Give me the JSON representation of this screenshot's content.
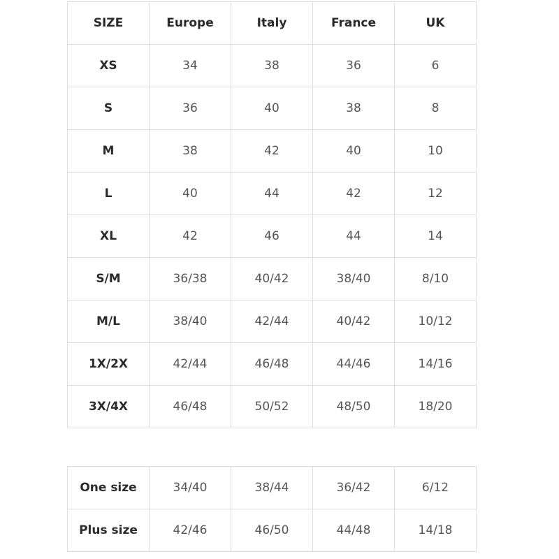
{
  "main_table": {
    "header": [
      "SIZE",
      "Europe",
      "Italy",
      "France",
      "UK"
    ],
    "rows": [
      [
        "XS",
        "34",
        "38",
        "36",
        "6"
      ],
      [
        "S",
        "36",
        "40",
        "38",
        "8"
      ],
      [
        "M",
        "38",
        "42",
        "40",
        "10"
      ],
      [
        "L",
        "40",
        "44",
        "42",
        "12"
      ],
      [
        "XL",
        "42",
        "46",
        "44",
        "14"
      ],
      [
        "S/M",
        "36/38",
        "40/42",
        "38/40",
        "8/10"
      ],
      [
        "M/L",
        "38/40",
        "42/44",
        "40/42",
        "10/12"
      ],
      [
        "1X/2X",
        "42/44",
        "46/48",
        "44/46",
        "14/16"
      ],
      [
        "3X/4X",
        "46/48",
        "50/52",
        "48/50",
        "18/20"
      ]
    ]
  },
  "extra_table": {
    "rows": [
      [
        "One size",
        "34/40",
        "38/44",
        "36/42",
        "6/12"
      ],
      [
        "Plus size",
        "42/46",
        "46/50",
        "44/48",
        "14/18"
      ]
    ]
  },
  "colors": {
    "border": "#dedede",
    "label_text": "#2b2b2b",
    "value_text": "#555555"
  }
}
